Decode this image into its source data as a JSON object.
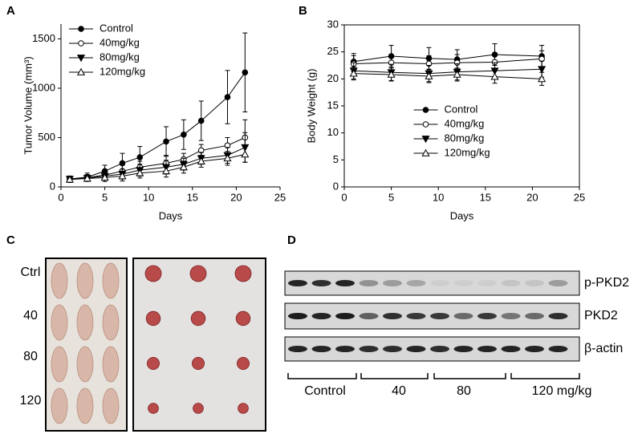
{
  "panels": [
    "A",
    "B",
    "C",
    "D"
  ],
  "chart_data": [
    {
      "type": "line",
      "x_label": "Days",
      "y_label": "Tumor Volume (mm³)",
      "x": [
        1,
        3,
        5,
        7,
        9,
        12,
        14,
        16,
        19,
        21
      ],
      "xlim": [
        0,
        25
      ],
      "xticks": [
        0,
        5,
        10,
        15,
        20,
        25
      ],
      "ylim": [
        0,
        1650
      ],
      "yticks": [
        0,
        500,
        1000,
        1500
      ],
      "box": false,
      "legend": "upper left",
      "series": [
        {
          "name": "Control",
          "color": "#000000",
          "marker": "circle",
          "values": [
            80,
            100,
            160,
            240,
            300,
            460,
            530,
            670,
            910,
            1160
          ],
          "errors": [
            30,
            40,
            60,
            100,
            110,
            150,
            150,
            200,
            270,
            400
          ]
        },
        {
          "name": "40mg/kg",
          "color": "#000000",
          "marker": "circle-open",
          "values": [
            80,
            95,
            120,
            160,
            200,
            240,
            280,
            370,
            420,
            500
          ],
          "errors": [
            30,
            30,
            40,
            60,
            60,
            80,
            60,
            60,
            80,
            180
          ]
        },
        {
          "name": "80mg/kg",
          "color": "#000000",
          "marker": "triangle-down",
          "values": [
            80,
            90,
            110,
            130,
            170,
            200,
            230,
            290,
            320,
            400
          ],
          "errors": [
            30,
            30,
            40,
            50,
            60,
            70,
            60,
            60,
            80,
            150
          ]
        },
        {
          "name": "120mg/kg",
          "color": "#000000",
          "marker": "triangle-open",
          "values": [
            75,
            85,
            95,
            110,
            140,
            160,
            200,
            260,
            290,
            330
          ],
          "errors": [
            30,
            30,
            40,
            50,
            50,
            60,
            60,
            60,
            70,
            80
          ]
        }
      ]
    },
    {
      "type": "line",
      "x_label": "Days",
      "y_label": "Body Weight (g)",
      "x": [
        1,
        5,
        9,
        12,
        16,
        21
      ],
      "xlim": [
        0,
        25
      ],
      "xticks": [
        0,
        5,
        10,
        15,
        20,
        25
      ],
      "ylim": [
        0,
        30
      ],
      "yticks": [
        0,
        5,
        10,
        15,
        20,
        25,
        30
      ],
      "box": true,
      "legend": "center",
      "series": [
        {
          "name": "Control",
          "color": "#000000",
          "marker": "circle",
          "values": [
            23.2,
            24.2,
            23.8,
            23.6,
            24.5,
            24.2
          ],
          "errors": [
            1.5,
            2,
            2,
            1.8,
            2,
            2
          ]
        },
        {
          "name": "40mg/kg",
          "color": "#000000",
          "marker": "circle-open",
          "values": [
            22.8,
            23,
            22.8,
            23,
            23.1,
            23.7
          ],
          "errors": [
            1.5,
            1.5,
            1.5,
            1.5,
            1.5,
            1.5
          ]
        },
        {
          "name": "80mg/kg",
          "color": "#000000",
          "marker": "triangle-down",
          "values": [
            21.5,
            21.2,
            21,
            21.3,
            21.5,
            21.8
          ],
          "errors": [
            1.5,
            1.5,
            1.5,
            1.5,
            1.5,
            1.5
          ]
        },
        {
          "name": "120mg/kg",
          "color": "#000000",
          "marker": "triangle-open",
          "values": [
            21,
            20.8,
            20.5,
            20.8,
            20.4,
            20
          ],
          "errors": [
            1.2,
            1.2,
            1.2,
            1.2,
            1.2,
            1.2
          ]
        }
      ]
    }
  ],
  "tumor_photos": {
    "row_labels": [
      "Ctrl",
      "40",
      "80",
      "120"
    ]
  },
  "western_blot": {
    "bands": [
      "p-PKD2",
      "PKD2",
      "β-actin"
    ],
    "groups": [
      "Control",
      "40",
      "80",
      "120 mg/kg"
    ]
  }
}
